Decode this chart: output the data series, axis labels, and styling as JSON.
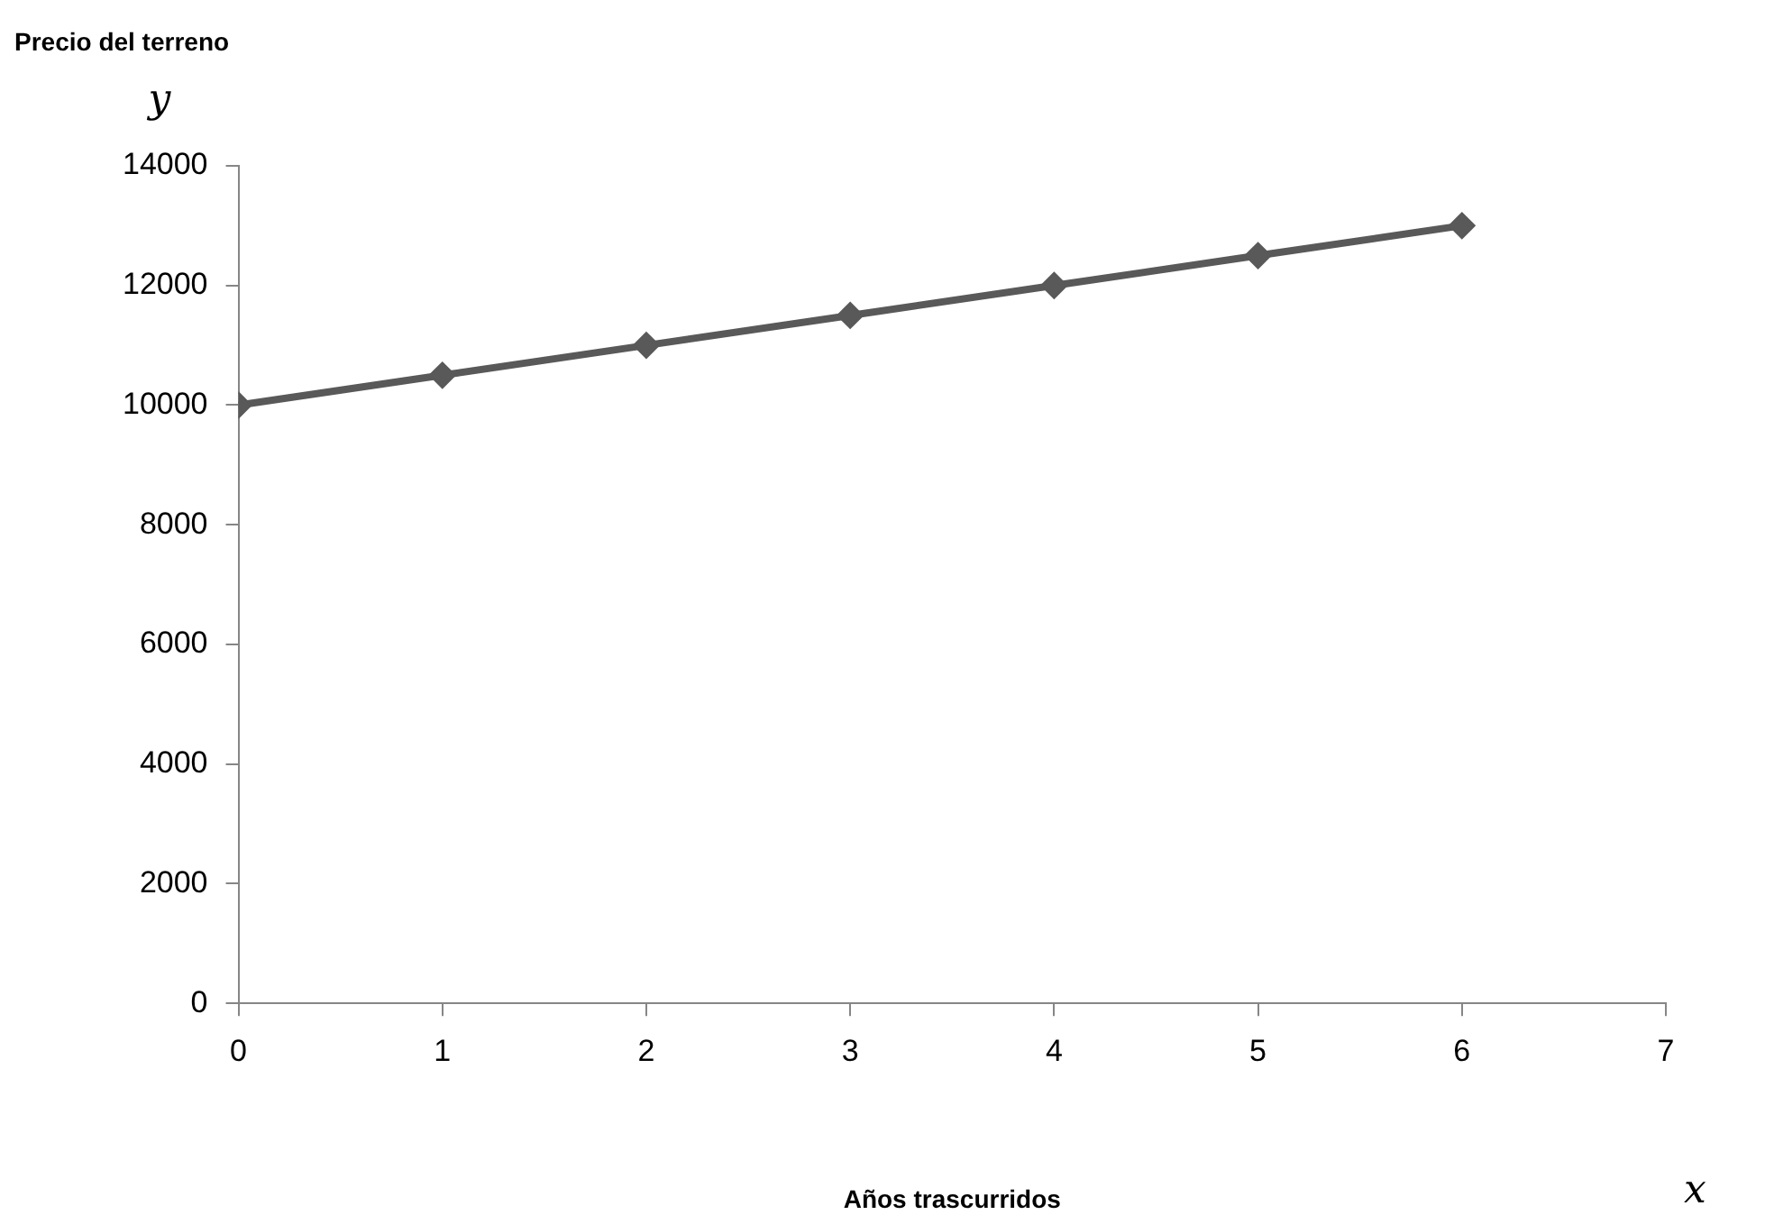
{
  "chart_data": {
    "type": "line",
    "ylabel": "Precio del terreno",
    "xlabel": "Años trascurridos",
    "annotations": [
      "y",
      "x"
    ],
    "x": [
      0,
      1,
      2,
      3,
      4,
      5,
      6
    ],
    "series": [
      {
        "color": "#595959",
        "values": [
          10000,
          10500,
          11000,
          11500,
          12000,
          12500,
          13000
        ]
      }
    ],
    "xlim": [
      0,
      7
    ],
    "xticks": [
      0,
      1,
      2,
      3,
      4,
      5,
      6,
      7
    ],
    "ylim": [
      0,
      14000
    ],
    "yticks": [
      0,
      2000,
      4000,
      6000,
      8000,
      10000,
      12000,
      14000
    ],
    "grid": false,
    "legend": false,
    "marker": "diamond",
    "line_style": "solid"
  }
}
